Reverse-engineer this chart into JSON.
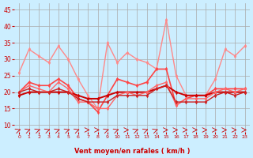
{
  "bg_color": "#cceeff",
  "grid_color": "#aaaaaa",
  "xlabel": "Vent moyen/en rafales ( km/h )",
  "xlabel_color": "#cc0000",
  "ylabel_color": "#cc0000",
  "yticks": [
    10,
    15,
    20,
    25,
    30,
    35,
    40,
    45
  ],
  "ylim": [
    8,
    47
  ],
  "xlim": [
    -0.5,
    23.5
  ],
  "xticks": [
    0,
    1,
    2,
    3,
    4,
    5,
    6,
    7,
    8,
    9,
    10,
    11,
    12,
    13,
    14,
    15,
    16,
    17,
    18,
    19,
    20,
    21,
    22,
    23
  ],
  "series": [
    {
      "y": [
        26,
        33,
        31,
        29,
        34,
        30,
        24,
        19,
        15,
        35,
        29,
        32,
        30,
        29,
        27,
        42,
        25,
        19,
        19,
        19,
        24,
        33,
        31,
        34
      ],
      "color": "#ff8888",
      "lw": 1.0,
      "marker": "d",
      "ms": 2.5
    },
    {
      "y": [
        20,
        23,
        22,
        22,
        24,
        22,
        18,
        17,
        14,
        19,
        24,
        23,
        22,
        23,
        27,
        27,
        16,
        18,
        19,
        19,
        21,
        21,
        21,
        21
      ],
      "color": "#ff4444",
      "lw": 1.2,
      "marker": "d",
      "ms": 2.5
    },
    {
      "y": [
        19,
        20,
        20,
        20,
        20,
        20,
        19,
        18,
        18,
        19,
        20,
        20,
        20,
        20,
        21,
        22,
        20,
        19,
        19,
        19,
        20,
        20,
        20,
        20
      ],
      "color": "#cc0000",
      "lw": 1.4,
      "marker": "d",
      "ms": 2.5
    },
    {
      "y": [
        20,
        22,
        21,
        20,
        23,
        21,
        17,
        17,
        15,
        15,
        19,
        20,
        19,
        20,
        22,
        23,
        16,
        18,
        18,
        18,
        20,
        21,
        20,
        21
      ],
      "color": "#ff6666",
      "lw": 1.0,
      "marker": "d",
      "ms": 2.5
    },
    {
      "y": [
        20,
        21,
        20,
        20,
        21,
        20,
        18,
        17,
        17,
        17,
        19,
        19,
        19,
        19,
        21,
        22,
        17,
        17,
        17,
        17,
        19,
        20,
        19,
        20
      ],
      "color": "#cc2222",
      "lw": 1.0,
      "marker": "d",
      "ms": 2.5
    }
  ],
  "arrow_color": "#cc0000",
  "title": ""
}
